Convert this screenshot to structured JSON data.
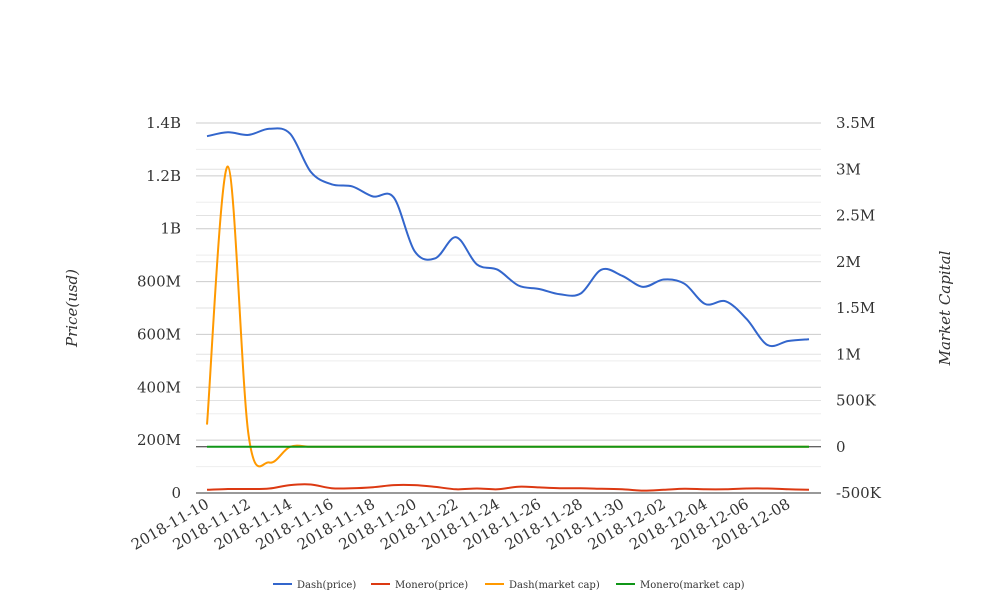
{
  "chart_data": {
    "type": "line",
    "x": [
      "2018-11-10",
      "2018-11-11",
      "2018-11-12",
      "2018-11-13",
      "2018-11-14",
      "2018-11-15",
      "2018-11-16",
      "2018-11-17",
      "2018-11-18",
      "2018-11-19",
      "2018-11-20",
      "2018-11-21",
      "2018-11-22",
      "2018-11-23",
      "2018-11-24",
      "2018-11-25",
      "2018-11-26",
      "2018-11-27",
      "2018-11-28",
      "2018-11-29",
      "2018-11-30",
      "2018-12-01",
      "2018-12-02",
      "2018-12-03",
      "2018-12-04",
      "2018-12-05",
      "2018-12-06",
      "2018-12-07",
      "2018-12-08",
      "2018-12-09"
    ],
    "x_tick_labels": [
      "2018-11-10",
      "2018-11-12",
      "2018-11-14",
      "2018-11-16",
      "2018-11-18",
      "2018-11-20",
      "2018-11-22",
      "2018-11-24",
      "2018-11-26",
      "2018-11-28",
      "2018-11-30",
      "2018-12-02",
      "2018-12-04",
      "2018-12-06",
      "2018-12-08"
    ],
    "y_left": {
      "label": "Price(usd)",
      "range": [
        0,
        1400000000
      ],
      "ticks": [
        0,
        200000000,
        400000000,
        600000000,
        800000000,
        1000000000,
        1200000000,
        1400000000
      ],
      "tick_labels": [
        "0",
        "200M",
        "400M",
        "600M",
        "800M",
        "1B",
        "1.2B",
        "1.4B"
      ]
    },
    "y_right": {
      "label": "Market Capital",
      "range": [
        -500000,
        3500000
      ],
      "ticks": [
        -500000,
        0,
        500000,
        1000000,
        1500000,
        2000000,
        2500000,
        3000000,
        3500000
      ],
      "tick_labels": [
        "-500K",
        "0",
        "500K",
        "1M",
        "1.5M",
        "2M",
        "2.5M",
        "3M",
        "3.5M"
      ]
    },
    "grid": true,
    "legend_position": "bottom",
    "series": [
      {
        "name": "Dash(price)",
        "axis": "left",
        "color": "#3366cc",
        "values": [
          1350000000,
          1365000000,
          1355000000,
          1378000000,
          1360000000,
          1215000000,
          1168000000,
          1160000000,
          1122000000,
          1118000000,
          915000000,
          888000000,
          968000000,
          865000000,
          845000000,
          785000000,
          772000000,
          752000000,
          755000000,
          845000000,
          822000000,
          780000000,
          808000000,
          792000000,
          715000000,
          725000000,
          658000000,
          560000000,
          575000000,
          582000000
        ]
      },
      {
        "name": "Monero(price)",
        "axis": "left",
        "color": "#dc3912",
        "values": [
          12000000,
          15000000,
          15000000,
          17000000,
          30000000,
          32000000,
          18000000,
          18000000,
          22000000,
          30000000,
          30000000,
          23000000,
          14000000,
          17000000,
          14000000,
          24000000,
          21000000,
          18000000,
          18000000,
          16000000,
          14000000,
          9000000,
          12000000,
          16000000,
          14000000,
          14000000,
          17000000,
          17000000,
          14000000,
          12000000
        ]
      },
      {
        "name": "Dash(market cap)",
        "axis": "right",
        "color": "#ff9900",
        "values": [
          240000,
          3030000,
          130000,
          -170000,
          0,
          0,
          0,
          0,
          0,
          0,
          0,
          0,
          0,
          0,
          0,
          0,
          0,
          0,
          0,
          0,
          0,
          0,
          0,
          0,
          0,
          0,
          0,
          0,
          0,
          0
        ]
      },
      {
        "name": "Monero(market cap)",
        "axis": "right",
        "color": "#109618",
        "values": [
          0,
          0,
          0,
          0,
          0,
          0,
          0,
          0,
          0,
          0,
          0,
          0,
          0,
          0,
          0,
          0,
          0,
          0,
          0,
          0,
          0,
          0,
          0,
          0,
          0,
          0,
          0,
          0,
          0,
          0
        ]
      }
    ]
  }
}
